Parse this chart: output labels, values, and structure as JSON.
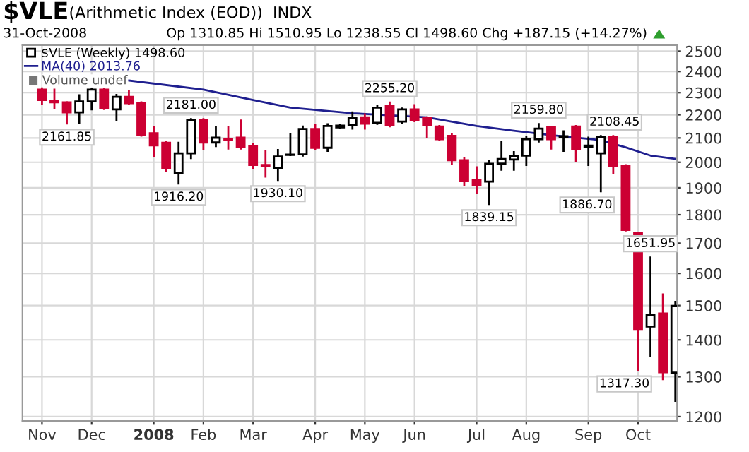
{
  "chart_data": {
    "type": "candlestick",
    "title": "$VLE",
    "subtitle": "(Arithmetic Index (EOD))  INDX",
    "annotations": [
      "31-Oct-2008",
      "Op 1310.85 Hi 1510.95 Lo 1238.55 Cl 1498.60 Chg +187.15 (+14.27%)",
      "Volume undef",
      {
        "text": "2161.85",
        "x": "2007-11-23",
        "y": 2161.85
      },
      {
        "text": "2181.00",
        "x": "2008-02-01",
        "y": 2181.0
      },
      {
        "text": "1916.20",
        "x": "2008-01-25",
        "y": 1916.2
      },
      {
        "text": "1930.10",
        "x": "2008-03-21",
        "y": 1930.1
      },
      {
        "text": "2255.20",
        "x": "2008-05-23",
        "y": 2255.2
      },
      {
        "text": "2159.80",
        "x": "2008-08-15",
        "y": 2159.8
      },
      {
        "text": "2108.45",
        "x": "2008-09-19",
        "y": 2108.45
      },
      {
        "text": "1839.15",
        "x": "2008-07-18",
        "y": 1839.15
      },
      {
        "text": "1886.70",
        "x": "2008-09-19",
        "y": 1886.7
      },
      {
        "text": "1651.95",
        "x": "2008-10-17",
        "y": 1651.95
      },
      {
        "text": "1317.30",
        "x": "2008-10-10",
        "y": 1317.3
      }
    ],
    "xlim": [
      "2007-10-29",
      "2008-11-01"
    ],
    "xticks": [
      {
        "value": "2007-11-09",
        "label": "Nov"
      },
      {
        "value": "2007-12-07",
        "label": "Dec"
      },
      {
        "value": "2008-01-11",
        "label": "2008"
      },
      {
        "value": "2008-02-08",
        "label": "Feb"
      },
      {
        "value": "2008-03-07",
        "label": "Mar"
      },
      {
        "value": "2008-04-11",
        "label": "Apr"
      },
      {
        "value": "2008-05-09",
        "label": "May"
      },
      {
        "value": "2008-06-06",
        "label": "Jun"
      },
      {
        "value": "2008-07-11",
        "label": "Jul"
      },
      {
        "value": "2008-08-08",
        "label": "Aug"
      },
      {
        "value": "2008-09-12",
        "label": "Sep"
      },
      {
        "value": "2008-10-10",
        "label": "Oct"
      }
    ],
    "ylim": [
      1190,
      2530
    ],
    "yticks": [
      1200,
      1300,
      1400,
      1500,
      1600,
      1700,
      1800,
      1900,
      2000,
      2100,
      2200,
      2300,
      2400,
      2500
    ],
    "log": true,
    "grid": true,
    "legend": "top left",
    "series": [
      {
        "type": "candlestick",
        "name": "$VLE (Weekly) 1498.60",
        "colors": [
          "#cc0033",
          "#cc0033",
          "#cc0033",
          "#000000",
          "#000000",
          "#cc0033",
          "#000000",
          "#cc0033",
          "#cc0033",
          "#cc0033",
          "#cc0033",
          "#000000",
          "#000000",
          "#cc0033",
          "#000000",
          "#cc0033",
          "#cc0033",
          "#cc0033",
          "#cc0033",
          "#000000",
          "#000000",
          "#000000",
          "#cc0033",
          "#000000",
          "#000000",
          "#000000",
          "#cc0033",
          "#000000",
          "#cc0033",
          "#000000",
          "#cc0033",
          "#cc0033",
          "#cc0033",
          "#cc0033",
          "#cc0033",
          "#cc0033",
          "#000000",
          "#000000",
          "#000000",
          "#000000",
          "#000000",
          "#cc0033",
          "#000000",
          "#cc0033",
          "#000000",
          "#000000",
          "#cc0033",
          "#cc0033",
          "#cc0033",
          "#000000",
          "#cc0033",
          "#000000"
        ],
        "x": [
          "2007-11-09",
          "2007-11-16",
          "2007-11-23",
          "2007-11-30",
          "2007-12-07",
          "2007-12-14",
          "2007-12-21",
          "2007-12-28",
          "2008-01-04",
          "2008-01-11",
          "2008-01-18",
          "2008-01-25",
          "2008-02-01",
          "2008-02-08",
          "2008-02-15",
          "2008-02-22",
          "2008-02-29",
          "2008-03-07",
          "2008-03-14",
          "2008-03-21",
          "2008-03-28",
          "2008-04-04",
          "2008-04-11",
          "2008-04-18",
          "2008-04-25",
          "2008-05-02",
          "2008-05-09",
          "2008-05-16",
          "2008-05-23",
          "2008-05-30",
          "2008-06-06",
          "2008-06-13",
          "2008-06-20",
          "2008-06-27",
          "2008-07-04",
          "2008-07-11",
          "2008-07-18",
          "2008-07-25",
          "2008-08-01",
          "2008-08-08",
          "2008-08-15",
          "2008-08-22",
          "2008-08-29",
          "2008-09-05",
          "2008-09-12",
          "2008-09-19",
          "2008-09-26",
          "2008-10-03",
          "2008-10-10",
          "2008-10-17",
          "2008-10-24",
          "2008-10-31"
        ],
        "ohlc": [
          [
            2314,
            2320,
            2250,
            2266
          ],
          [
            2262,
            2314,
            2228,
            2256
          ],
          [
            2256,
            2256,
            2161.85,
            2211
          ],
          [
            2211,
            2288,
            2165,
            2260
          ],
          [
            2260,
            2316,
            2224,
            2314
          ],
          [
            2314,
            2316,
            2226,
            2228
          ],
          [
            2224,
            2290,
            2175,
            2281
          ],
          [
            2281,
            2309,
            2250,
            2252
          ],
          [
            2252,
            2256,
            2110,
            2112
          ],
          [
            2120,
            2145,
            2023,
            2069
          ],
          [
            2080,
            2082,
            1964,
            1976
          ],
          [
            1958,
            2080,
            1916.2,
            2036
          ],
          [
            2036,
            2181.0,
            2017,
            2178
          ],
          [
            2178,
            2181,
            2052,
            2081
          ],
          [
            2081,
            2145,
            2066,
            2101
          ],
          [
            2097,
            2145,
            2056,
            2093
          ],
          [
            2101,
            2175,
            2056,
            2061
          ],
          [
            2066,
            2075,
            1975,
            1989
          ],
          [
            1989,
            2046,
            1943,
            1984
          ],
          [
            1978,
            2050,
            1930.1,
            2023
          ],
          [
            2030,
            2115,
            2029,
            2031
          ],
          [
            2032,
            2149,
            2027,
            2138
          ],
          [
            2138,
            2155,
            2052,
            2059
          ],
          [
            2059,
            2159,
            2046,
            2151
          ],
          [
            2145,
            2155,
            2143,
            2153
          ],
          [
            2155,
            2211,
            2140,
            2185
          ],
          [
            2189,
            2202,
            2140,
            2161
          ],
          [
            2165,
            2240,
            2160,
            2232
          ],
          [
            2238,
            2255.2,
            2150,
            2155
          ],
          [
            2170,
            2228,
            2165,
            2224
          ],
          [
            2224,
            2243,
            2172,
            2175
          ],
          [
            2185,
            2189,
            2105,
            2155
          ],
          [
            2149,
            2151,
            2093,
            2095
          ],
          [
            2109,
            2115,
            1994,
            2008
          ],
          [
            2008,
            2017,
            1911,
            1927
          ],
          [
            1929,
            1980,
            1880,
            1911
          ],
          [
            1924,
            2005,
            1839.15,
            1994
          ],
          [
            1995,
            2085,
            1970,
            2013
          ],
          [
            2011,
            2041,
            1970,
            2025
          ],
          [
            2027,
            2105,
            1989,
            2095
          ],
          [
            2095,
            2159.8,
            2085,
            2140
          ],
          [
            2145,
            2147,
            2056,
            2095
          ],
          [
            2103,
            2128,
            2046,
            2107
          ],
          [
            2149,
            2151,
            2005,
            2052
          ],
          [
            2064,
            2101,
            1989,
            2068
          ],
          [
            2036,
            2108.45,
            1886.7,
            2105
          ],
          [
            2105,
            2108,
            1956,
            1986
          ],
          [
            1986,
            1988,
            1744,
            1746
          ],
          [
            1734,
            1734,
            1317.3,
            1431
          ],
          [
            1438,
            1651.95,
            1356,
            1472
          ],
          [
            1476,
            1534,
            1294,
            1312
          ],
          [
            1310.85,
            1510.95,
            1238.55,
            1498.6
          ]
        ]
      },
      {
        "type": "line",
        "name": "MA(40) 2013.76",
        "color": "#1f1f8f",
        "x": [
          "2007-12-28",
          "2008-02-08",
          "2008-03-07",
          "2008-03-28",
          "2008-05-02",
          "2008-06-13",
          "2008-07-11",
          "2008-08-01",
          "2008-08-22",
          "2008-09-19",
          "2008-10-03",
          "2008-10-17",
          "2008-10-31"
        ],
        "values": [
          2357,
          2314,
          2266,
          2232,
          2207,
          2189,
          2151,
          2131,
          2112,
          2091,
          2061,
          2027,
          2013.76
        ]
      }
    ]
  }
}
